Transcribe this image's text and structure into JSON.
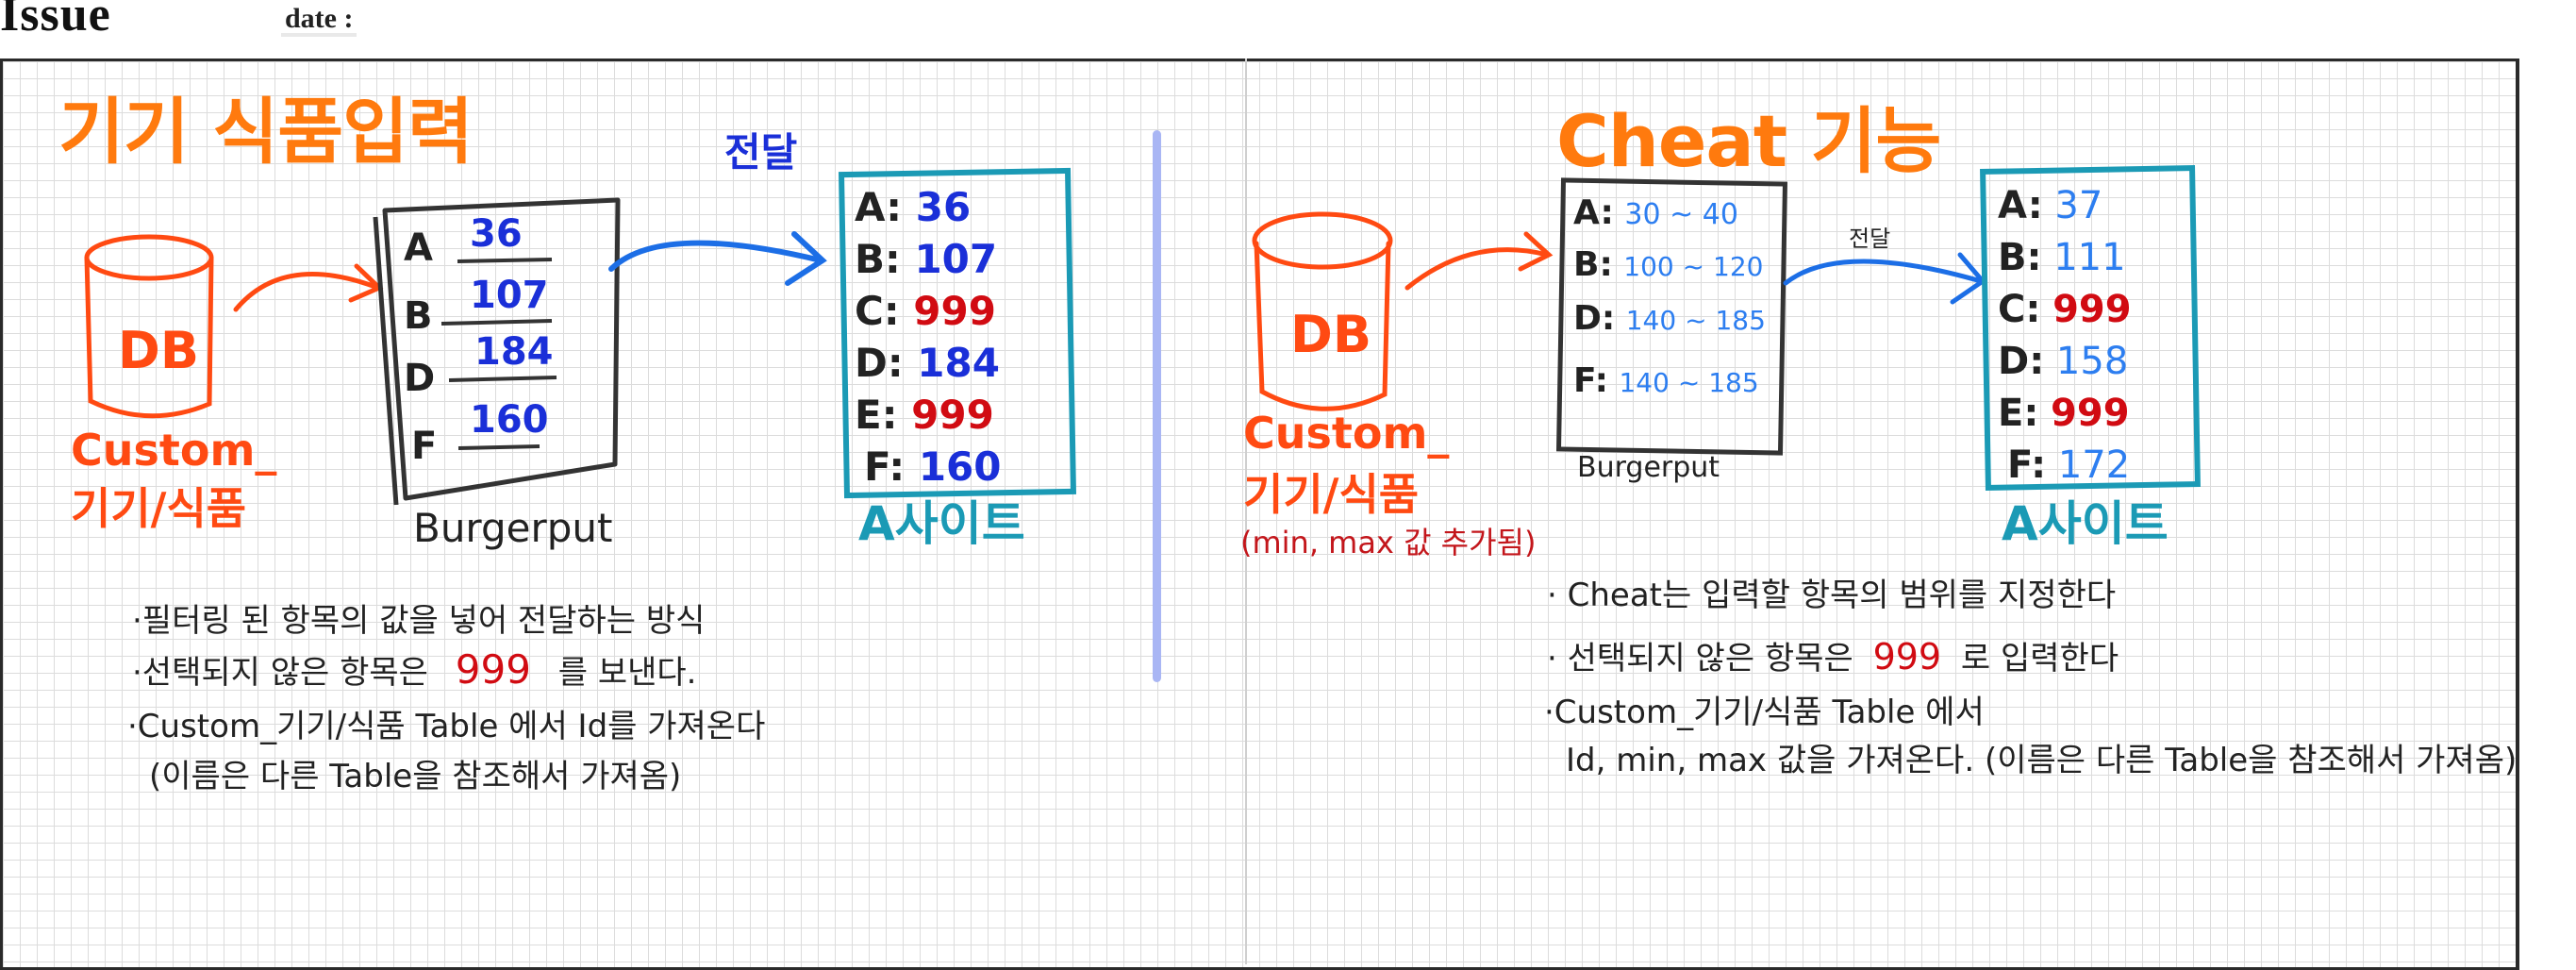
{
  "header": {
    "title": "Issue",
    "date_label": "date :"
  },
  "left": {
    "title": "기기 식품입력",
    "db_label": "DB",
    "db_caption_line1": "Custom_",
    "db_caption_line2": "기기/식품",
    "transfer_label": "전달",
    "burgerput_rows": [
      {
        "letter": "A",
        "value": "36"
      },
      {
        "letter": "B",
        "value": "107"
      },
      {
        "letter": "D",
        "value": "184"
      },
      {
        "letter": "F",
        "value": "160"
      }
    ],
    "burgerput_label": "Burgerput",
    "site_rows": [
      {
        "label": "A:",
        "value": "36",
        "color": "#1a2fd8"
      },
      {
        "label": "B:",
        "value": "107",
        "color": "#1a2fd8"
      },
      {
        "label": "C:",
        "value": "999",
        "color": "#d10b12"
      },
      {
        "label": "D:",
        "value": "184",
        "color": "#1a2fd8"
      },
      {
        "label": "E:",
        "value": "999",
        "color": "#d10b12"
      },
      {
        "label": "F:",
        "value": "160",
        "color": "#1a2fd8"
      }
    ],
    "site_label": "A사이트",
    "notes": {
      "line1": "·필터링 된 항목의 값을 넣어 전달하는 방식",
      "line2_pre": "·선택되지 않은 항목은",
      "line2_num": "999",
      "line2_post": "를 보낸다.",
      "line3": "·Custom_기기/식품 Table 에서 Id를 가져온다",
      "line4": "(이름은 다른 Table을 참조해서 가져옴)"
    }
  },
  "right": {
    "title": "Cheat 기능",
    "db_label": "DB",
    "db_caption_line1": "Custom_",
    "db_caption_line2": "기기/식품",
    "db_caption_line3": "(min, max 값 추가됨)",
    "transfer_label": "전달",
    "burgerput_rows": [
      {
        "label": "A:",
        "value": "30 ~ 40"
      },
      {
        "label": "B:",
        "value": "100 ~ 120"
      },
      {
        "label": "D:",
        "value": "140 ~ 185"
      },
      {
        "label": "F:",
        "value": "140 ~ 185"
      }
    ],
    "burgerput_label": "Burgerput",
    "site_rows": [
      {
        "label": "A:",
        "value": "37",
        "color": "#2d7ef0"
      },
      {
        "label": "B:",
        "value": "111",
        "color": "#2d7ef0"
      },
      {
        "label": "C:",
        "value": "999",
        "color": "#d10b12"
      },
      {
        "label": "D:",
        "value": "158",
        "color": "#2d7ef0"
      },
      {
        "label": "E:",
        "value": "999",
        "color": "#d10b12"
      },
      {
        "label": "F:",
        "value": "172",
        "color": "#2d7ef0"
      }
    ],
    "site_label": "A사이트",
    "notes": {
      "line1": "· Cheat는 입력할 항목의 범위를 지정한다",
      "line2_pre": "· 선택되지 않은 항목은",
      "line2_num": "999",
      "line2_post": "로 입력한다",
      "line3": "·Custom_기기/식품 Table 에서",
      "line4": "Id, min, max 값을 가져온다. (이름은 다른 Table을 참조해서 가져옴)"
    }
  }
}
